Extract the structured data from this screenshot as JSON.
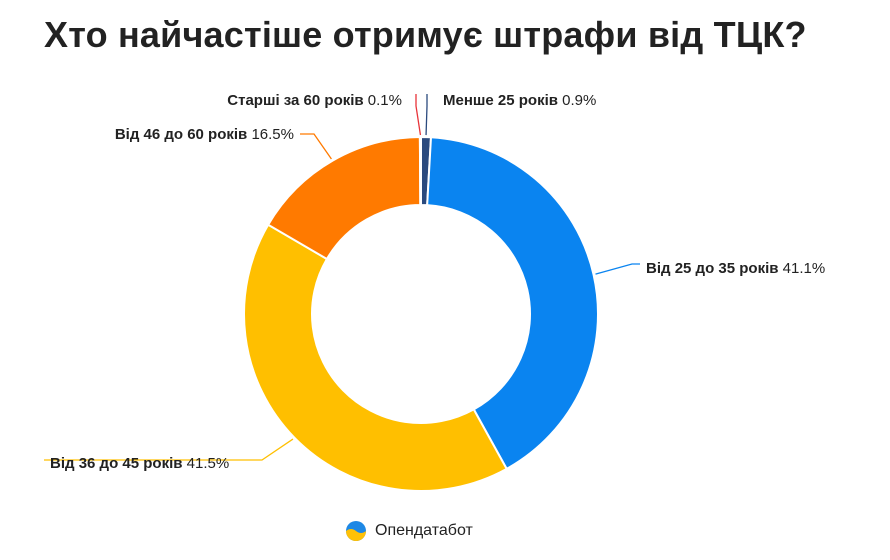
{
  "title": "Хто найчастіше отримує штрафи від ТЦК?",
  "brand": {
    "name": "Опендатабот",
    "logo_colors": [
      "#1E88E5",
      "#FFC107"
    ]
  },
  "chart_data": {
    "type": "pie",
    "donut": true,
    "title": "Хто найчастіше отримує штрафи від ТЦК?",
    "series": [
      {
        "name": "Менше 25 років",
        "value": 0.9,
        "value_label": "0.9%",
        "color": "#2B4A7E"
      },
      {
        "name": "Від 25 до 35 років",
        "value": 41.1,
        "value_label": "41.1%",
        "color": "#0A84F0"
      },
      {
        "name": "Від 36 до 45 років",
        "value": 41.5,
        "value_label": "41.5%",
        "color": "#FFBF00"
      },
      {
        "name": "Від 46 до 60 років",
        "value": 16.5,
        "value_label": "16.5%",
        "color": "#FF7A00"
      },
      {
        "name": "Старші за 60 років",
        "value": 0.1,
        "value_label": "0.1%",
        "color": "#E8343A"
      }
    ],
    "legend": "none",
    "labels": "outside with leader lines"
  }
}
